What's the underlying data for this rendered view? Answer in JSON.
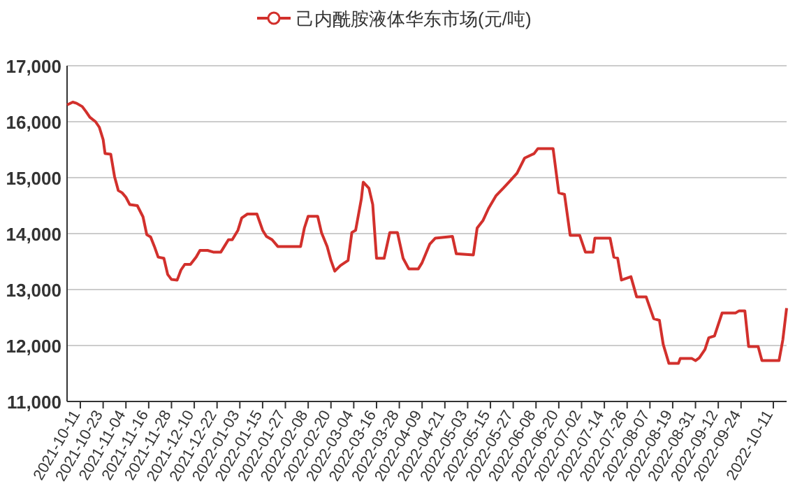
{
  "chart_data": {
    "type": "line",
    "legend": "top",
    "grid": "y",
    "xlim": [
      "2021-10-04",
      "2022-10-18"
    ],
    "xticks": [
      "2021-10-11",
      "2021-10-23",
      "2021-11-04",
      "2021-11-16",
      "2021-11-28",
      "2021-12-10",
      "2021-12-22",
      "2022-01-03",
      "2022-01-15",
      "2022-01-27",
      "2022-02-08",
      "2022-02-20",
      "2022-03-04",
      "2022-03-16",
      "2022-03-28",
      "2022-04-09",
      "2022-04-21",
      "2022-05-03",
      "2022-05-15",
      "2022-05-27",
      "2022-06-08",
      "2022-06-20",
      "2022-07-02",
      "2022-07-14",
      "2022-07-26",
      "2022-08-07",
      "2022-08-19",
      "2022-08-31",
      "2022-09-12",
      "2022-09-24",
      "2022-10-11"
    ],
    "ylim": [
      11000,
      17000
    ],
    "yticks": [
      {
        "value": 11000,
        "label": "11,000"
      },
      {
        "value": 12000,
        "label": "12,000"
      },
      {
        "value": 13000,
        "label": "13,000"
      },
      {
        "value": 14000,
        "label": "14,000"
      },
      {
        "value": 15000,
        "label": "15,000"
      },
      {
        "value": 16000,
        "label": "16,000"
      },
      {
        "value": 17000,
        "label": "17,000"
      }
    ],
    "series": [
      {
        "name": "己内酰胺液体华东市场(元/吨)",
        "color": "#d2302c",
        "x": [
          "2021-10-04",
          "2021-10-07",
          "2021-10-09",
          "2021-10-12",
          "2021-10-14",
          "2021-10-16",
          "2021-10-19",
          "2021-10-21",
          "2021-10-23",
          "2021-10-24",
          "2021-10-27",
          "2021-10-29",
          "2021-10-31",
          "2021-11-02",
          "2021-11-04",
          "2021-11-06",
          "2021-11-10",
          "2021-11-13",
          "2021-11-15",
          "2021-11-17",
          "2021-11-19",
          "2021-11-21",
          "2021-11-24",
          "2021-11-26",
          "2021-11-28",
          "2021-12-01",
          "2021-12-03",
          "2021-12-05",
          "2021-12-08",
          "2021-12-11",
          "2021-12-13",
          "2021-12-17",
          "2021-12-20",
          "2021-12-24",
          "2021-12-26",
          "2021-12-28",
          "2021-12-30",
          "2022-01-02",
          "2022-01-04",
          "2022-01-07",
          "2022-01-12",
          "2022-01-15",
          "2022-01-17",
          "2022-01-20",
          "2022-01-23",
          "2022-01-25",
          "2022-02-04",
          "2022-02-06",
          "2022-02-08",
          "2022-02-13",
          "2022-02-15",
          "2022-02-18",
          "2022-02-20",
          "2022-02-22",
          "2022-02-25",
          "2022-03-01",
          "2022-03-03",
          "2022-03-05",
          "2022-03-08",
          "2022-03-09",
          "2022-03-12",
          "2022-03-14",
          "2022-03-16",
          "2022-03-20",
          "2022-03-23",
          "2022-03-27",
          "2022-03-30",
          "2022-04-02",
          "2022-04-07",
          "2022-04-09",
          "2022-04-13",
          "2022-04-16",
          "2022-04-25",
          "2022-04-27",
          "2022-05-06",
          "2022-05-08",
          "2022-05-11",
          "2022-05-14",
          "2022-05-18",
          "2022-05-22",
          "2022-05-25",
          "2022-05-29",
          "2022-06-02",
          "2022-06-07",
          "2022-06-09",
          "2022-06-17",
          "2022-06-20",
          "2022-06-23",
          "2022-06-26",
          "2022-07-01",
          "2022-07-04",
          "2022-07-08",
          "2022-07-09",
          "2022-07-17",
          "2022-07-19",
          "2022-07-21",
          "2022-07-23",
          "2022-07-28",
          "2022-07-31",
          "2022-08-05",
          "2022-08-09",
          "2022-08-12",
          "2022-08-14",
          "2022-08-17",
          "2022-08-22",
          "2022-08-23",
          "2022-08-29",
          "2022-08-31",
          "2022-09-02",
          "2022-09-05",
          "2022-09-07",
          "2022-09-10",
          "2022-09-14",
          "2022-09-21",
          "2022-09-23",
          "2022-09-26",
          "2022-09-28",
          "2022-10-03",
          "2022-10-05",
          "2022-10-14",
          "2022-10-16",
          "2022-10-18"
        ],
        "values": [
          16300,
          16350,
          16330,
          16270,
          16180,
          16080,
          16000,
          15900,
          15680,
          15430,
          15420,
          15020,
          14770,
          14730,
          14650,
          14520,
          14500,
          14300,
          13980,
          13940,
          13770,
          13580,
          13560,
          13270,
          13180,
          13170,
          13350,
          13450,
          13450,
          13580,
          13700,
          13700,
          13670,
          13670,
          13780,
          13890,
          13890,
          14060,
          14280,
          14350,
          14350,
          14060,
          13950,
          13890,
          13770,
          13770,
          13770,
          14100,
          14310,
          14310,
          14020,
          13770,
          13520,
          13330,
          13430,
          13520,
          14020,
          14060,
          14620,
          14920,
          14810,
          14520,
          13560,
          13560,
          14020,
          14020,
          13560,
          13370,
          13370,
          13480,
          13810,
          13920,
          13950,
          13640,
          13620,
          14100,
          14230,
          14450,
          14680,
          14820,
          14930,
          15080,
          15350,
          15430,
          15520,
          15520,
          14730,
          14700,
          13970,
          13970,
          13670,
          13670,
          13920,
          13920,
          13580,
          13560,
          13170,
          13230,
          12870,
          12870,
          12480,
          12450,
          12020,
          11680,
          11680,
          11770,
          11770,
          11730,
          11780,
          11930,
          12140,
          12170,
          12580,
          12580,
          12620,
          12620,
          11980,
          11980,
          11730,
          11730,
          12100,
          12670
        ]
      }
    ]
  }
}
